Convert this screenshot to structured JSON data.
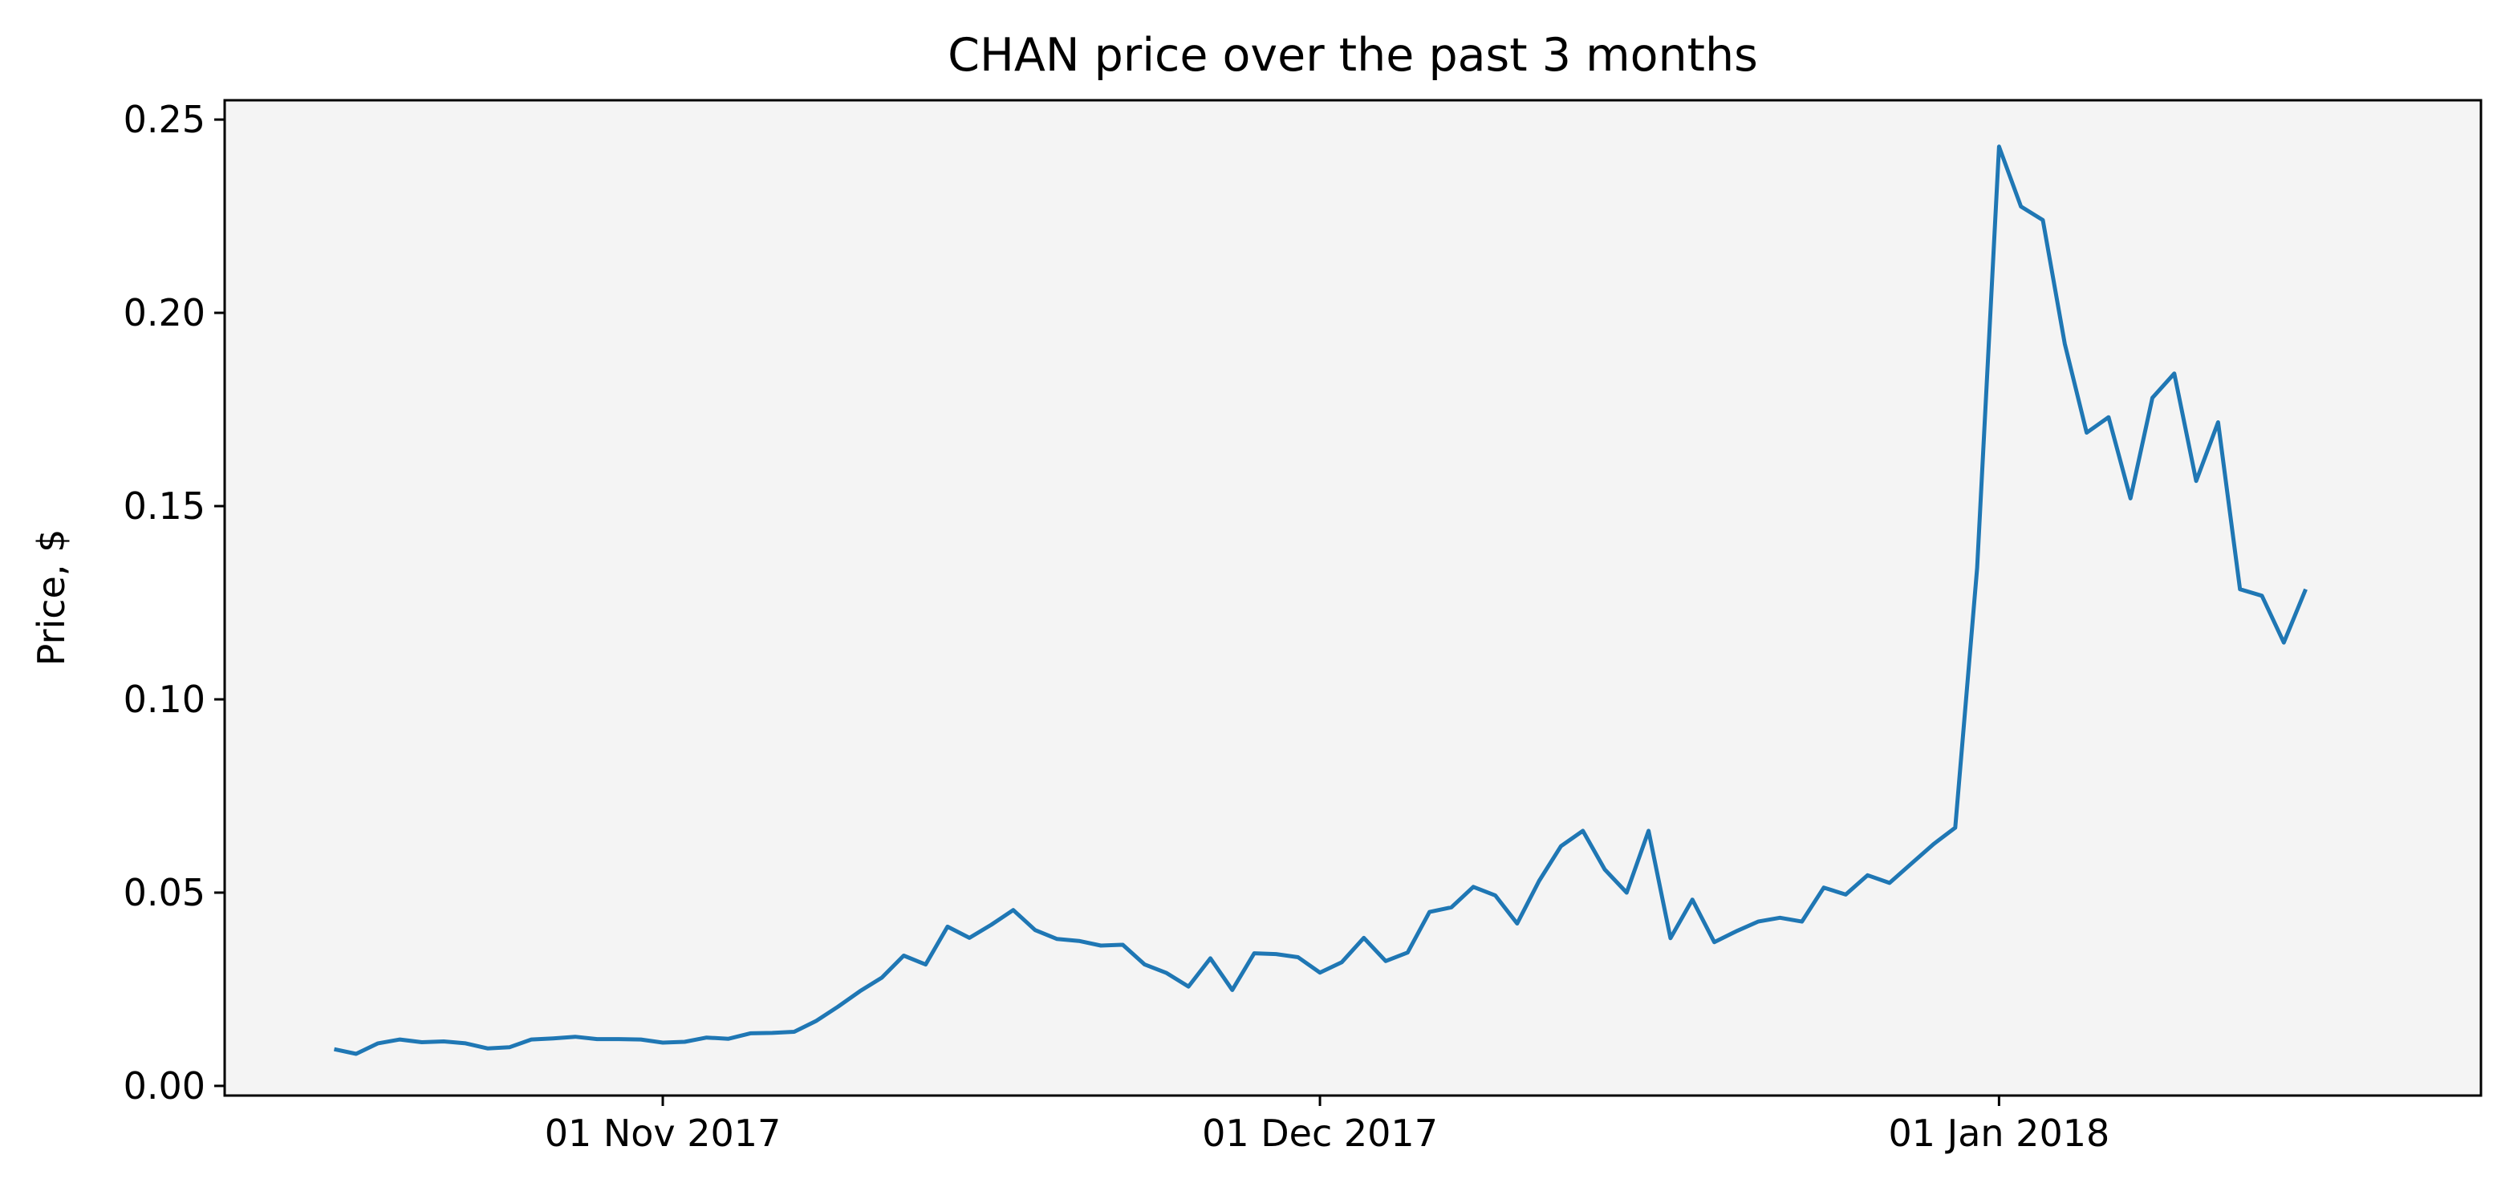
{
  "chart_data": {
    "type": "line",
    "title": "CHAN price over the past 3 months",
    "xlabel": "",
    "ylabel": "Price, $",
    "ylim": [
      -0.0025,
      0.255
    ],
    "xlim": [
      "2017-10-12",
      "2018-01-23"
    ],
    "grid": false,
    "background": "#f4f4f4",
    "line_color": "#1f77b4",
    "x_ticks": [
      {
        "date": "2017-11-01",
        "label": "01 Nov 2017"
      },
      {
        "date": "2017-12-01",
        "label": "01 Dec 2017"
      },
      {
        "date": "2018-01-01",
        "label": "01 Jan 2018"
      }
    ],
    "y_ticks": [
      {
        "value": 0.0,
        "label": "0.00"
      },
      {
        "value": 0.05,
        "label": "0.05"
      },
      {
        "value": 0.1,
        "label": "0.10"
      },
      {
        "value": 0.15,
        "label": "0.15"
      },
      {
        "value": 0.2,
        "label": "0.20"
      },
      {
        "value": 0.25,
        "label": "0.25"
      }
    ],
    "series": [
      {
        "start_date": "2017-10-17",
        "values": [
          0.0095,
          0.0083,
          0.011,
          0.012,
          0.0113,
          0.0115,
          0.011,
          0.0097,
          0.01,
          0.012,
          0.0123,
          0.0127,
          0.0121,
          0.0121,
          0.012,
          0.0112,
          0.0114,
          0.0125,
          0.0122,
          0.0136,
          0.0137,
          0.014,
          0.0168,
          0.0205,
          0.0245,
          0.028,
          0.0337,
          0.0314,
          0.0412,
          0.0383,
          0.0417,
          0.0455,
          0.0403,
          0.038,
          0.0375,
          0.0363,
          0.0365,
          0.0314,
          0.0292,
          0.0257,
          0.033,
          0.0248,
          0.0343,
          0.0341,
          0.0333,
          0.0293,
          0.032,
          0.0383,
          0.0323,
          0.0345,
          0.045,
          0.0462,
          0.0515,
          0.0493,
          0.042,
          0.053,
          0.062,
          0.066,
          0.056,
          0.05,
          0.066,
          0.0382,
          0.0482,
          0.0372,
          0.04,
          0.0425,
          0.0435,
          0.0425,
          0.0513,
          0.0495,
          0.0545,
          0.0525,
          0.0575,
          0.0625,
          0.0668,
          0.134,
          0.243,
          0.2275,
          0.224,
          0.192,
          0.169,
          0.173,
          0.152,
          0.178,
          0.1843,
          0.1565,
          0.1717,
          0.1285,
          0.1268,
          0.1147,
          0.1285
        ]
      }
    ]
  }
}
